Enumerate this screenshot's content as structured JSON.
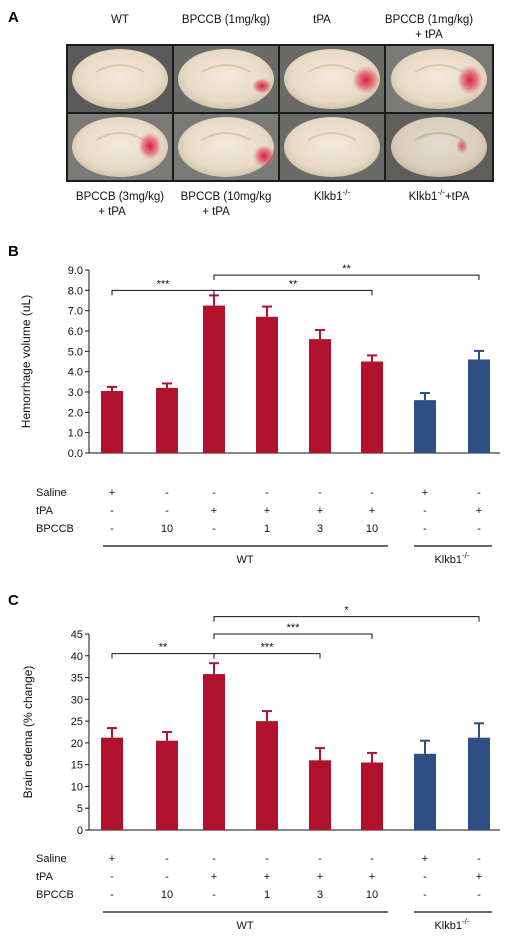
{
  "panelA": {
    "letter": "A",
    "top_labels": [
      "WT",
      "BPCCB (1mg/kg)",
      "tPA",
      "BPCCB (1mg/kg)",
      "+ tPA"
    ],
    "bottom_labels": [
      "BPCCB (3mg/kg)",
      "+ tPA",
      "BPCCB (10mg/kg",
      "+ tPA",
      "Klkb1",
      "-/-",
      "Klkb1",
      "-/-",
      "+tPA"
    ]
  },
  "chart_data": [
    {
      "type": "bar",
      "letter": "B",
      "ylabel": "Hemorrhage volume (uL)",
      "ylim": [
        0,
        9
      ],
      "yticks": [
        "0.0",
        "1.0",
        "2.0",
        "3.0",
        "4.0",
        "5.0",
        "6.0",
        "7.0",
        "8.0",
        "9.0"
      ],
      "values": [
        3.05,
        3.2,
        7.25,
        6.7,
        5.6,
        4.5,
        2.6,
        4.6
      ],
      "errors": [
        0.2,
        0.22,
        0.5,
        0.5,
        0.45,
        0.3,
        0.35,
        0.42
      ],
      "colors": [
        "#b0122e",
        "#b0122e",
        "#b0122e",
        "#b0122e",
        "#b0122e",
        "#b0122e",
        "#2d4f84",
        "#2d4f84"
      ],
      "rows": [
        {
          "label": "Saline",
          "cells": [
            "+",
            "-",
            "-",
            "-",
            "-",
            "-",
            "+",
            "-"
          ]
        },
        {
          "label": "tPA",
          "cells": [
            "-",
            "-",
            "+",
            "+",
            "+",
            "+",
            "-",
            "+"
          ]
        },
        {
          "label": "BPCCB",
          "cells": [
            "-",
            "10",
            "-",
            "1",
            "3",
            "10",
            "-",
            "-"
          ]
        }
      ],
      "groups": [
        "WT",
        "Klkb1",
        "-/-"
      ],
      "brackets": [
        {
          "from": 0,
          "to": 2,
          "label": "***",
          "level": 8.0
        },
        {
          "from": 2,
          "to": 5,
          "label": "**",
          "level": 8.0
        },
        {
          "from": 2,
          "to": 7,
          "label": "**",
          "level": 8.75
        }
      ]
    },
    {
      "type": "bar",
      "letter": "C",
      "ylabel": "Brain edema (% change)",
      "ylim": [
        0,
        45
      ],
      "yticks": [
        "0",
        "5",
        "10",
        "15",
        "20",
        "25",
        "30",
        "35",
        "40",
        "45"
      ],
      "values": [
        21.2,
        20.5,
        35.8,
        25.0,
        16.0,
        15.5,
        17.5,
        21.2
      ],
      "errors": [
        2.2,
        2.0,
        2.5,
        2.3,
        2.8,
        2.2,
        3.0,
        3.3
      ],
      "colors": [
        "#b0122e",
        "#b0122e",
        "#b0122e",
        "#b0122e",
        "#b0122e",
        "#b0122e",
        "#2d4f84",
        "#2d4f84"
      ],
      "rows": [
        {
          "label": "Saline",
          "cells": [
            "+",
            "-",
            "-",
            "-",
            "-",
            "-",
            "+",
            "-"
          ]
        },
        {
          "label": "tPA",
          "cells": [
            "-",
            "-",
            "+",
            "+",
            "+",
            "+",
            "-",
            "+"
          ]
        },
        {
          "label": "BPCCB",
          "cells": [
            "-",
            "10",
            "-",
            "1",
            "3",
            "10",
            "-",
            "-"
          ]
        }
      ],
      "groups": [
        "WT",
        "Klkb1",
        "-/-"
      ],
      "brackets": [
        {
          "from": 0,
          "to": 2,
          "label": "**",
          "level": 40.5
        },
        {
          "from": 2,
          "to": 4,
          "label": "***",
          "level": 40.5
        },
        {
          "from": 2,
          "to": 5,
          "label": "***",
          "level": 45.0
        },
        {
          "from": 2,
          "to": 7,
          "label": "*",
          "level": 49.0
        }
      ]
    }
  ]
}
